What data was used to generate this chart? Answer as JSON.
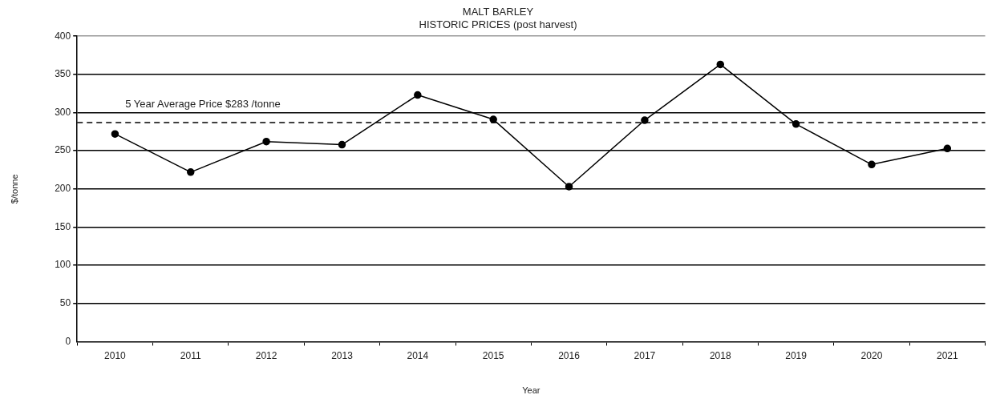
{
  "chart_data": {
    "type": "line",
    "title": "MALT BARLEY",
    "subtitle": "HISTORIC PRICES (post harvest)",
    "xlabel": "Year",
    "ylabel": "$/tonne",
    "categories": [
      "2010",
      "2011",
      "2012",
      "2013",
      "2014",
      "2015",
      "2016",
      "2017",
      "2018",
      "2019",
      "2020",
      "2021"
    ],
    "series": [
      {
        "color": "#000000",
        "values": [
          272,
          222,
          262,
          258,
          323,
          291,
          203,
          290,
          363,
          285,
          232,
          253
        ]
      }
    ],
    "ylim": [
      0,
      400
    ],
    "yticks": [
      0,
      50,
      100,
      150,
      200,
      250,
      300,
      350,
      400
    ],
    "ref_lines": [
      {
        "axis": "y",
        "value": 287,
        "label": "5 Year Average Price $283 /tonne",
        "color": "#000000",
        "line_style": "dashed"
      }
    ],
    "grid": "y",
    "legend": false,
    "marker": "circle",
    "line_style": "solid"
  }
}
